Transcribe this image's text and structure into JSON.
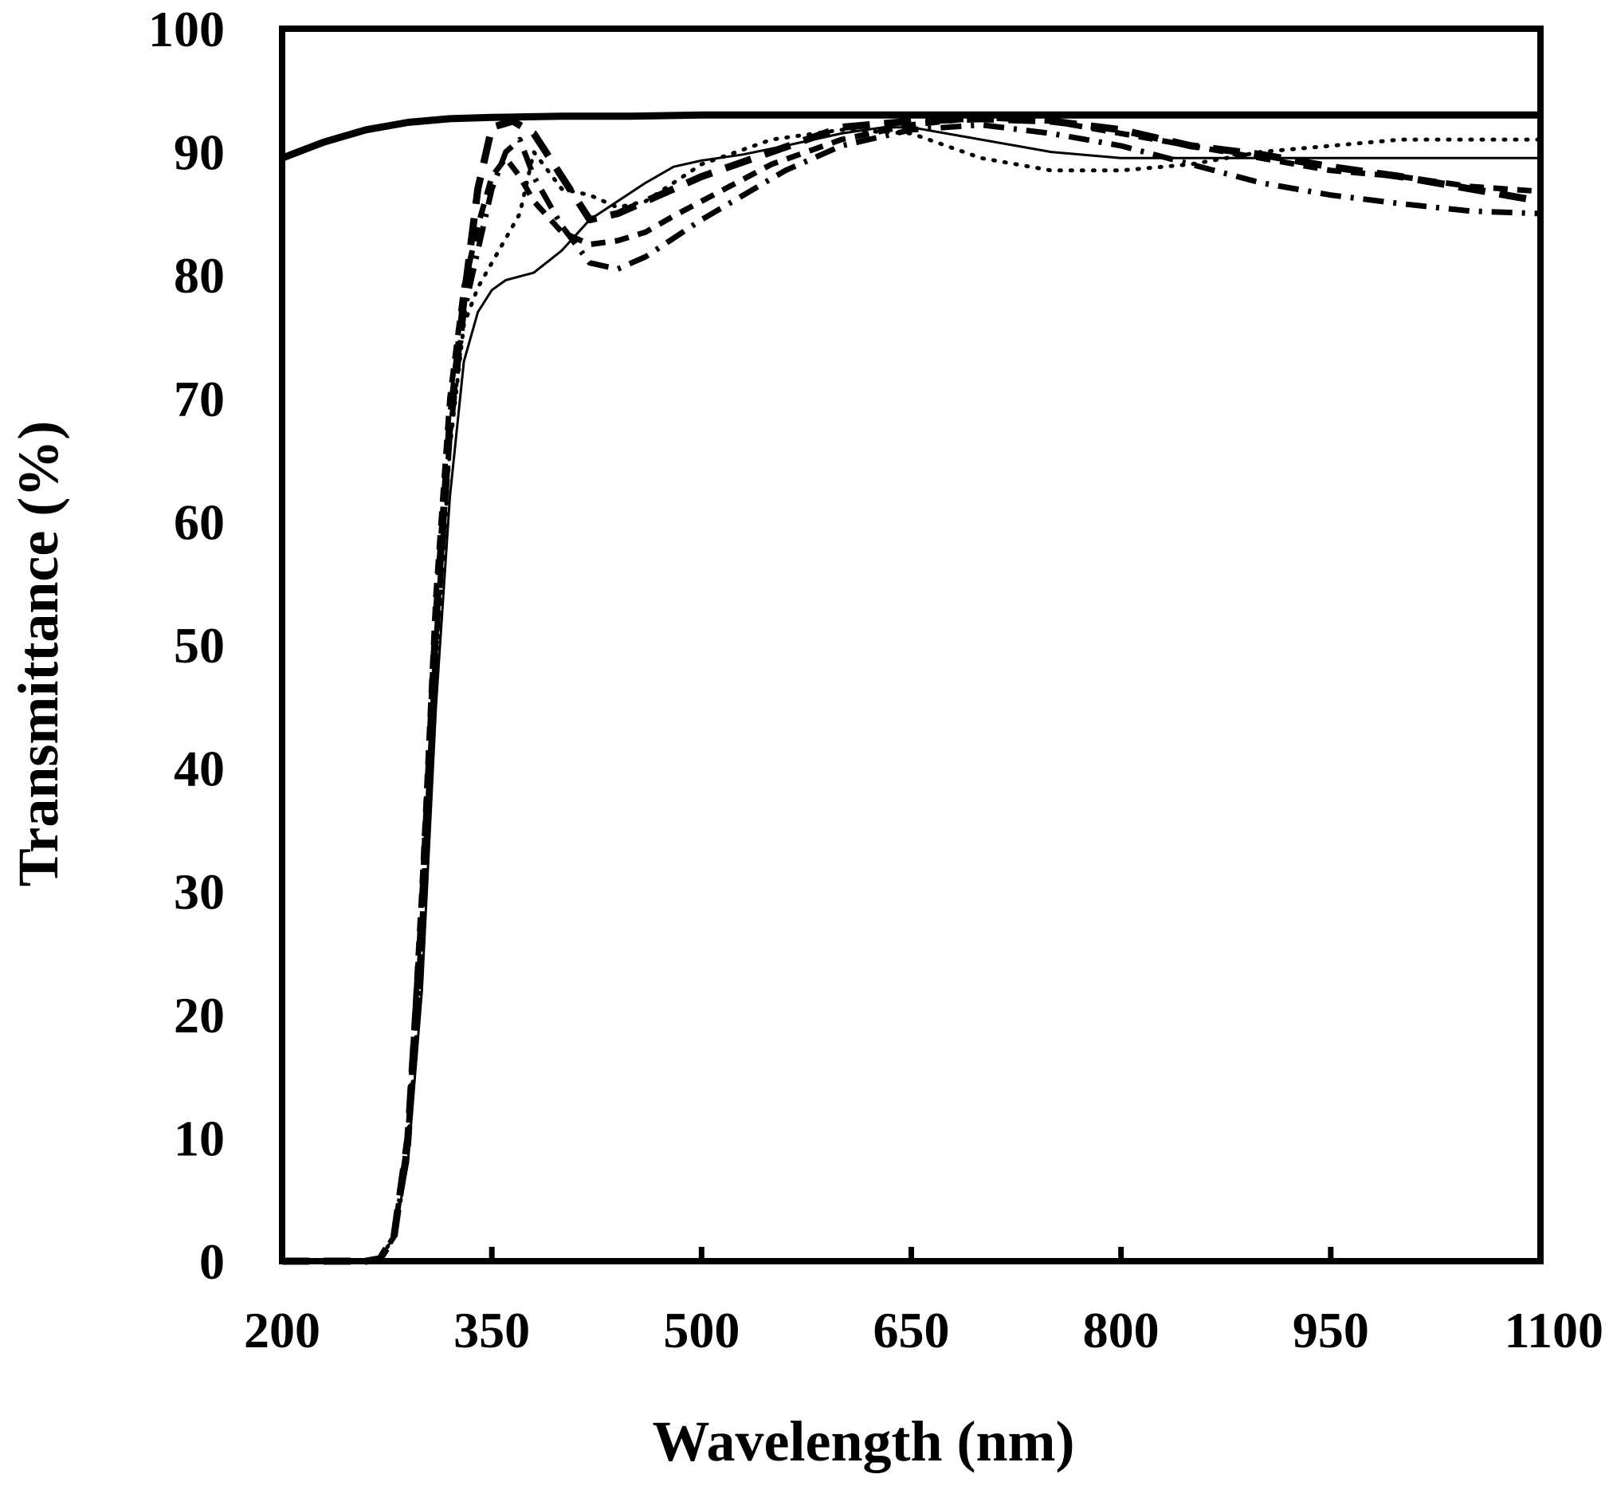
{
  "chart_data": {
    "type": "line",
    "xlabel": "Wavelength (nm)",
    "ylabel": "Transmittance (%)",
    "xlim": [
      200,
      1100
    ],
    "ylim": [
      0,
      100
    ],
    "xticks": [
      200,
      350,
      500,
      650,
      800,
      950,
      1100
    ],
    "yticks": [
      0,
      10,
      20,
      30,
      40,
      50,
      60,
      70,
      80,
      90,
      100
    ],
    "grid": false,
    "legend": "none",
    "colors": {
      "line": "#000000",
      "frame": "#000000",
      "background": "#ffffff"
    },
    "series": [
      {
        "style": "thick-solid",
        "x": [
          200,
          230,
          260,
          290,
          320,
          350,
          400,
          450,
          500,
          550,
          600,
          650,
          700,
          800,
          900,
          1000,
          1100
        ],
        "y": [
          89.5,
          90.8,
          91.8,
          92.4,
          92.7,
          92.8,
          92.9,
          92.9,
          93.0,
          93.0,
          93.0,
          93.0,
          93.0,
          93.0,
          93.0,
          93.0,
          93.0
        ]
      },
      {
        "style": "thin-solid",
        "x": [
          200,
          260,
          270,
          280,
          290,
          300,
          310,
          320,
          330,
          340,
          350,
          360,
          380,
          400,
          420,
          440,
          460,
          480,
          500,
          530,
          560,
          600,
          630,
          650,
          700,
          750,
          800,
          900,
          1000,
          1100
        ],
        "y": [
          0,
          0,
          0.2,
          2,
          8,
          22,
          45,
          62,
          73,
          77,
          78.8,
          79.6,
          80.2,
          82,
          84.5,
          86,
          87.5,
          88.8,
          89.3,
          89.8,
          90.5,
          91.5,
          92.0,
          92.0,
          91.0,
          90.0,
          89.5,
          89.5,
          89.5,
          89.5
        ]
      },
      {
        "style": "thick-dash",
        "x": [
          200,
          260,
          270,
          280,
          290,
          300,
          310,
          320,
          330,
          340,
          350,
          365,
          380,
          400,
          420,
          440,
          460,
          480,
          500,
          550,
          600,
          650,
          700,
          750,
          800,
          850,
          900,
          950,
          1000,
          1050,
          1100
        ],
        "y": [
          0,
          0,
          0.2,
          2,
          10,
          28,
          52,
          68,
          78,
          87,
          92,
          92.5,
          91.5,
          88,
          84.5,
          85,
          86,
          87,
          88,
          90,
          92,
          92.5,
          92.7,
          92.5,
          91.8,
          90.5,
          89.8,
          88.8,
          88,
          87,
          86
        ]
      },
      {
        "style": "dotted",
        "x": [
          200,
          260,
          270,
          280,
          290,
          300,
          310,
          320,
          330,
          340,
          350,
          370,
          380,
          400,
          420,
          440,
          460,
          480,
          500,
          550,
          600,
          650,
          700,
          750,
          800,
          850,
          900,
          950,
          1000,
          1050,
          1100
        ],
        "y": [
          0,
          0,
          0.2,
          2,
          9,
          25,
          48,
          66,
          76,
          79,
          81,
          85,
          90,
          87,
          86.5,
          85.5,
          86,
          87.5,
          89,
          91,
          91.8,
          91.5,
          89.5,
          88.5,
          88.5,
          89,
          90,
          90.5,
          91,
          91,
          91
        ]
      },
      {
        "style": "dash-dot",
        "x": [
          200,
          260,
          270,
          280,
          290,
          300,
          310,
          320,
          330,
          340,
          350,
          360,
          370,
          380,
          400,
          420,
          440,
          460,
          480,
          500,
          530,
          560,
          600,
          650,
          700,
          750,
          800,
          850,
          900,
          950,
          1000,
          1050,
          1100
        ],
        "y": [
          0,
          0,
          0.2,
          2,
          9,
          27,
          50,
          67,
          77,
          82,
          87,
          90,
          91,
          88,
          84,
          81,
          80.5,
          81.5,
          83,
          84.5,
          86.5,
          88.5,
          90.5,
          91.8,
          92.2,
          91.5,
          90.5,
          89,
          87.5,
          86.5,
          85.8,
          85.2,
          85
        ]
      },
      {
        "style": "long-dash",
        "x": [
          200,
          260,
          270,
          280,
          290,
          300,
          310,
          320,
          330,
          340,
          350,
          360,
          370,
          380,
          400,
          420,
          440,
          460,
          480,
          500,
          550,
          600,
          650,
          700,
          750,
          800,
          850,
          900,
          950,
          1000,
          1050,
          1100
        ],
        "y": [
          0,
          0,
          0.2,
          2,
          10,
          30,
          54,
          70,
          79,
          84,
          88,
          89.5,
          88,
          86,
          83.5,
          82.5,
          82.8,
          83.5,
          84.8,
          86,
          89,
          91,
          92.2,
          92.8,
          92.5,
          91.5,
          90.5,
          89.5,
          88.5,
          88,
          87.2,
          86.8
        ]
      }
    ]
  }
}
